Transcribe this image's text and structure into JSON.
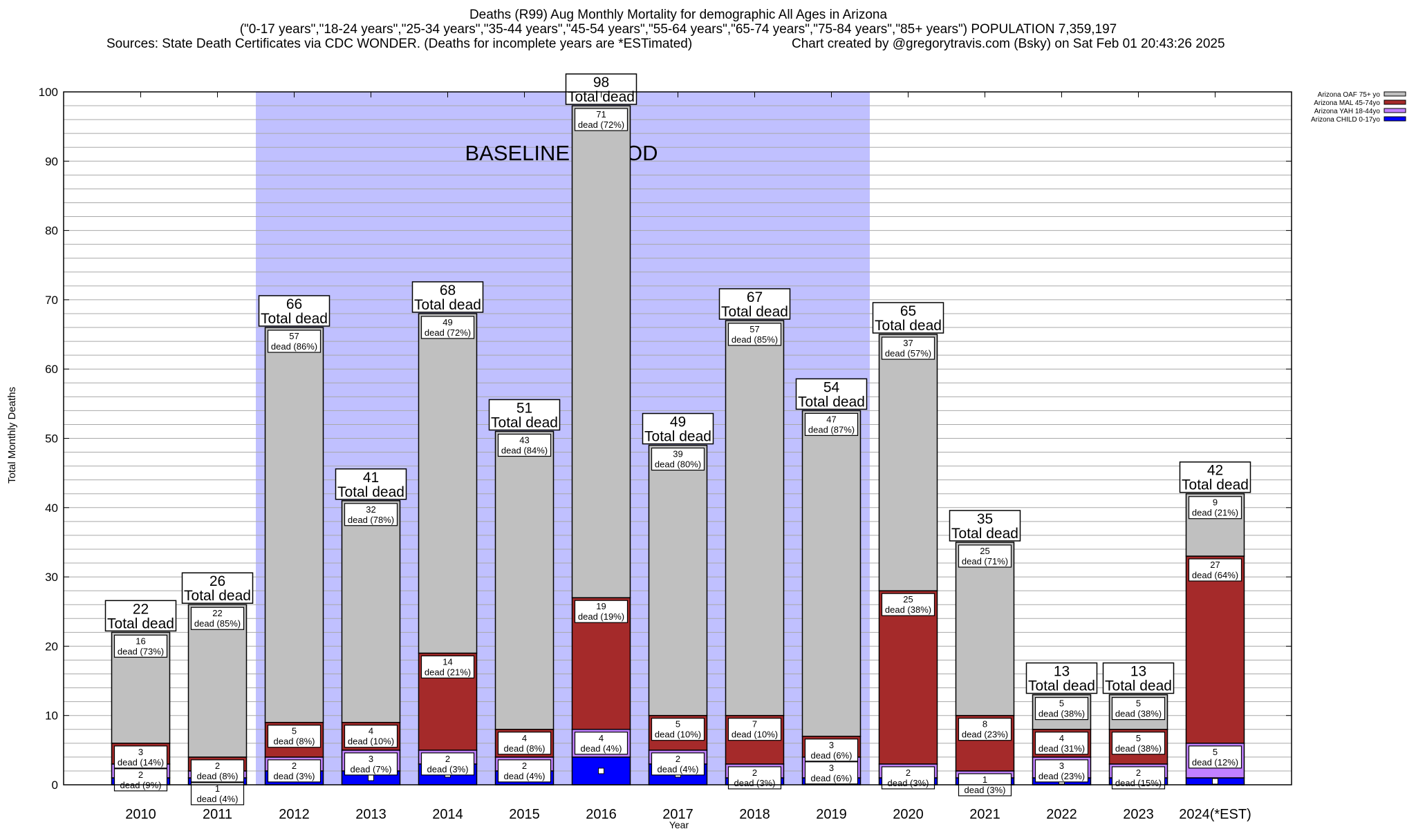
{
  "title_lines": [
    "Deaths (R99) Aug Monthly Mortality for demographic All Ages in Arizona",
    "(\"0-17 years\",\"18-24 years\",\"25-34 years\",\"35-44 years\",\"45-54 years\",\"55-64 years\",\"65-74 years\",\"75-84 years\",\"85+ years\") POPULATION 7,359,197"
  ],
  "sources": "Sources: State Death Certificates via CDC WONDER. (Deaths for incomplete years are *ESTimated)",
  "credit": "Chart created by @gregorytravis.com (Bsky) on Sat Feb 01 20:43:26 2025",
  "chart_data": {
    "type": "bar",
    "stacked": true,
    "xlabel": "Year",
    "ylabel": "Total Monthly Deaths",
    "ylim": [
      0,
      100
    ],
    "yticks": [
      0,
      10,
      20,
      30,
      40,
      50,
      60,
      70,
      80,
      90,
      100
    ],
    "grid": true,
    "legend_position": "top-right, outside plot",
    "annotation": {
      "text": "BASELINE PERIOD",
      "from": "2012",
      "to": "2019",
      "color": "#c0c0ff"
    },
    "total_label_suffix": "Total dead",
    "segment_label_word": "dead",
    "categories": [
      "2010",
      "2011",
      "2012",
      "2013",
      "2014",
      "2015",
      "2016",
      "2017",
      "2018",
      "2019",
      "2020",
      "2021",
      "2022",
      "2023",
      "2024(*EST)"
    ],
    "series": [
      {
        "name": "Arizona CHILD 0-17yo",
        "color": "#0000ff",
        "values": [
          1,
          1,
          2,
          2,
          3,
          2,
          4,
          3,
          1,
          1,
          1,
          1,
          1,
          1,
          1
        ],
        "pct": []
      },
      {
        "name": "Arizona YAH 18-44yo",
        "color": "#c080ff",
        "values": [
          2,
          1,
          2,
          3,
          2,
          2,
          4,
          2,
          2,
          3,
          2,
          1,
          3,
          2,
          5
        ],
        "pct": [
          9,
          4,
          3,
          7,
          3,
          4,
          4,
          4,
          3,
          6,
          3,
          3,
          23,
          15,
          12
        ]
      },
      {
        "name": "Arizona MAL 45-74yo",
        "color": "#a52a2a",
        "values": [
          3,
          2,
          5,
          4,
          14,
          4,
          19,
          5,
          7,
          3,
          25,
          8,
          4,
          5,
          27
        ],
        "pct": [
          14,
          8,
          8,
          10,
          21,
          8,
          19,
          10,
          10,
          6,
          38,
          23,
          31,
          38,
          64
        ]
      },
      {
        "name": "Arizona OAF 75+ yo",
        "color": "#c0c0c0",
        "values": [
          16,
          22,
          57,
          32,
          49,
          43,
          71,
          39,
          57,
          47,
          37,
          25,
          5,
          5,
          9
        ],
        "pct": [
          73,
          85,
          86,
          78,
          72,
          84,
          72,
          80,
          85,
          87,
          57,
          71,
          38,
          38,
          21
        ]
      }
    ],
    "totals": [
      22,
      26,
      66,
      41,
      68,
      51,
      98,
      49,
      67,
      54,
      65,
      35,
      13,
      13,
      42
    ]
  }
}
